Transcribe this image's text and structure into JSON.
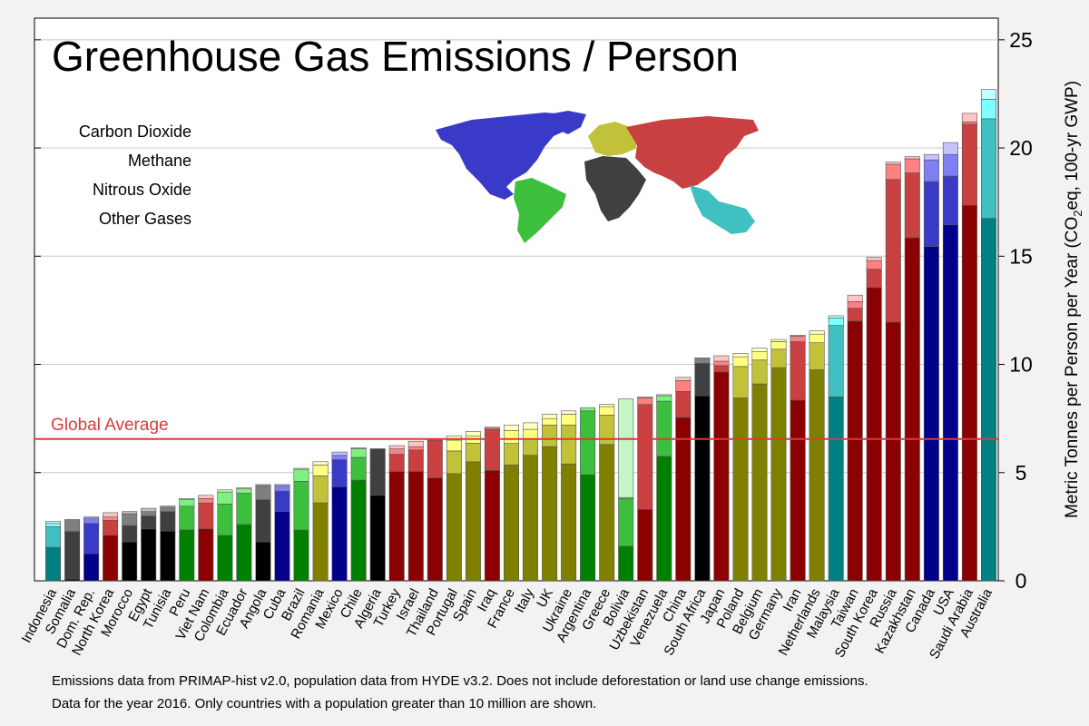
{
  "chart_data": {
    "type": "bar",
    "title": "Greenhouse Gas Emissions / Person",
    "ylabel_parts": [
      "Metric Tonnes per Person per Year (CO",
      "2",
      "eq, 100-yr GWP)"
    ],
    "ylim": [
      0,
      26
    ],
    "yticks": [
      0,
      5,
      10,
      15,
      20,
      25
    ],
    "grid": true,
    "y_axis_side": "right",
    "reference_line": {
      "label": "Global Average",
      "value": 6.55,
      "color": "#d93b3b"
    },
    "gases": [
      "Carbon Dioxide",
      "Methane",
      "Nitrous Oxide",
      "Other Gases"
    ],
    "regions": [
      {
        "name": "Americas",
        "colors": [
          "#00008b",
          "#3a3ac8",
          "#7e7ef5",
          "#c4c4fa"
        ]
      },
      {
        "name": "Europe/Russia",
        "colors": [
          "#8b0000",
          "#c84040",
          "#ff8080",
          "#ffc4c4"
        ]
      },
      {
        "name": "Europe",
        "colors": [
          "#808000",
          "#c2c23a",
          "#ffff80",
          "#ffffc4"
        ]
      },
      {
        "name": "South America",
        "colors": [
          "#008000",
          "#3cbf3c",
          "#80f080",
          "#c4f5c4"
        ]
      },
      {
        "name": "Africa",
        "colors": [
          "#000000",
          "#404040",
          "#7f7f7f",
          "#c0c0c0"
        ]
      },
      {
        "name": "Asia-Pacific",
        "colors": [
          "#008080",
          "#40c0c0",
          "#80ffff",
          "#c4ffff"
        ]
      }
    ],
    "categories": [
      "Indonesia",
      "Somalia",
      "Dom. Rep.",
      "North Korea",
      "Morocco",
      "Egypt",
      "Tunisia",
      "Peru",
      "Viet Nam",
      "Colombia",
      "Ecuador",
      "Angola",
      "Cuba",
      "Brazil",
      "Romania",
      "Mexico",
      "Chile",
      "Algeria",
      "Turkey",
      "Israel",
      "Thailand",
      "Portugal",
      "Spain",
      "Iraq",
      "France",
      "Italy",
      "UK",
      "Ukraine",
      "Argentina",
      "Greece",
      "Bolivia",
      "Uzbekistan",
      "Venezuela",
      "China",
      "South Africa",
      "Japan",
      "Poland",
      "Belgium",
      "Germany",
      "Iran",
      "Netherlands",
      "Malaysia",
      "Taiwan",
      "South Korea",
      "Russia",
      "Kazakhstan",
      "Canada",
      "USA",
      "Saudi Arabia",
      "Australia"
    ],
    "region_index": [
      5,
      4,
      0,
      1,
      4,
      4,
      4,
      3,
      1,
      3,
      3,
      4,
      0,
      3,
      2,
      0,
      3,
      4,
      1,
      1,
      1,
      2,
      2,
      1,
      2,
      2,
      2,
      2,
      3,
      2,
      3,
      1,
      3,
      1,
      4,
      1,
      2,
      2,
      2,
      1,
      2,
      5,
      1,
      1,
      1,
      1,
      0,
      0,
      1,
      5
    ],
    "series": [
      {
        "name": "Carbon Dioxide",
        "values": [
          1.55,
          0.08,
          1.25,
          2.1,
          1.8,
          2.4,
          2.3,
          2.35,
          2.4,
          2.1,
          2.6,
          1.8,
          3.2,
          2.35,
          3.6,
          4.35,
          4.65,
          3.95,
          5.05,
          5.05,
          4.75,
          4.95,
          5.5,
          5.1,
          5.35,
          5.8,
          6.2,
          5.4,
          4.9,
          6.3,
          1.6,
          3.3,
          5.75,
          7.55,
          8.55,
          9.65,
          8.45,
          9.1,
          9.85,
          8.35,
          9.75,
          8.5,
          12.0,
          13.55,
          11.95,
          15.85,
          15.45,
          16.45,
          17.35,
          16.75
        ]
      },
      {
        "name": "Methane",
        "values": [
          0.95,
          2.2,
          1.4,
          0.7,
          0.75,
          0.6,
          0.9,
          1.1,
          1.2,
          1.45,
          1.45,
          1.95,
          0.95,
          2.25,
          1.25,
          1.25,
          1.05,
          2.15,
          0.8,
          1.0,
          1.75,
          1.05,
          0.85,
          1.9,
          1.0,
          0.75,
          1.0,
          1.8,
          2.95,
          1.35,
          2.2,
          4.85,
          2.55,
          1.2,
          1.5,
          0.3,
          1.45,
          1.1,
          0.85,
          2.7,
          1.25,
          3.3,
          0.6,
          0.85,
          6.6,
          3.0,
          3.0,
          2.25,
          3.75,
          4.6
        ]
      },
      {
        "name": "Nitrous Oxide",
        "values": [
          0.15,
          0.55,
          0.25,
          0.15,
          0.55,
          0.2,
          0.2,
          0.3,
          0.2,
          0.55,
          0.2,
          0.65,
          0.25,
          0.55,
          0.5,
          0.2,
          0.4,
          0.0,
          0.25,
          0.15,
          0.05,
          0.5,
          0.35,
          0.05,
          0.6,
          0.45,
          0.3,
          0.5,
          0.15,
          0.4,
          0.05,
          0.3,
          0.25,
          0.5,
          0.25,
          0.2,
          0.45,
          0.4,
          0.35,
          0.25,
          0.4,
          0.35,
          0.3,
          0.4,
          0.7,
          0.65,
          1.0,
          1.0,
          0.1,
          0.9
        ]
      },
      {
        "name": "Other Gases",
        "values": [
          0.1,
          0.0,
          0.05,
          0.2,
          0.1,
          0.15,
          0.05,
          0.05,
          0.15,
          0.1,
          0.05,
          0.05,
          0.05,
          0.05,
          0.15,
          0.15,
          0.05,
          0.0,
          0.15,
          0.25,
          0.0,
          0.2,
          0.2,
          0.05,
          0.25,
          0.3,
          0.2,
          0.15,
          0.0,
          0.1,
          4.55,
          0.05,
          0.05,
          0.15,
          0.0,
          0.25,
          0.15,
          0.15,
          0.1,
          0.05,
          0.15,
          0.1,
          0.3,
          0.15,
          0.1,
          0.1,
          0.25,
          0.55,
          0.4,
          0.45
        ]
      }
    ]
  },
  "map": {
    "regions": [
      {
        "name": "North America",
        "region": 0
      },
      {
        "name": "Europe",
        "region": 2
      },
      {
        "name": "Russia & Asia",
        "region": 1
      },
      {
        "name": "South America",
        "region": 3
      },
      {
        "name": "Africa",
        "region": 4
      },
      {
        "name": "Oceania",
        "region": 5
      }
    ]
  },
  "footnote": {
    "line1": "Emissions data from PRIMAP-hist v2.0, population data from HYDE v3.2.  Does not include deforestation or land use change emissions.",
    "line2": "Data for the year 2016.  Only countries with a population greater than 10 million are shown."
  }
}
